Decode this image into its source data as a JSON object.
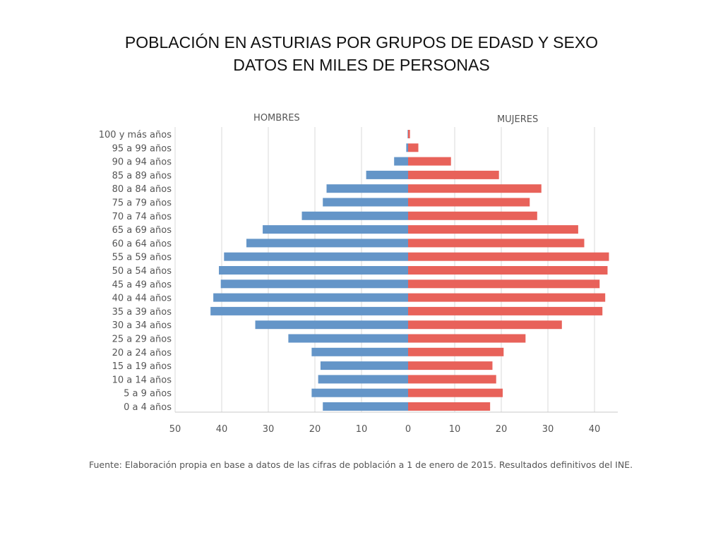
{
  "slide": {
    "title_line1": "POBLACIÓN EN ASTURIAS POR GRUPOS DE EDASD Y SEXO",
    "title_line2": "DATOS EN MILES DE PERSONAS"
  },
  "source": {
    "text": "Fuente: Elaboración propia en base a datos de las cifras de población a 1 de enero de 2015. Resultados definitivos del INE."
  },
  "colors": {
    "hombres": "#6495c8",
    "mujeres": "#e8625a",
    "grid": "#d9d9d9",
    "axis": "#c8c8c8",
    "label": "#555555"
  },
  "chart_data": {
    "type": "bar",
    "orientation": "horizontal-population-pyramid",
    "title": "POBLACIÓN EN ASTURIAS POR GRUPOS DE EDASD Y SEXO",
    "subtitle": "DATOS EN MILES DE PERSONAS",
    "series_labels": {
      "left": "HOMBRES",
      "right": "MUJERES"
    },
    "categories": [
      "100 y más años",
      "95 a 99 años",
      "90 a 94 años",
      "85 a 89 años",
      "80 a 84 años",
      "75 a 79 años",
      "70 a 74 años",
      "65 a 69 años",
      "60 a 64 años",
      "55 a 59 años",
      "50 a 54 años",
      "45 a 49 años",
      "40 a 44 años",
      "35 a 39 años",
      "30 a 34 años",
      "25 a 29 años",
      "20 a 24 años",
      "15 a 19 años",
      "10 a 14 años",
      "5 a 9 años",
      "0 a 4 años"
    ],
    "series": [
      {
        "name": "HOMBRES",
        "values": [
          0.1,
          0.4,
          3.0,
          9.0,
          17.5,
          18.3,
          22.8,
          31.2,
          34.7,
          39.5,
          40.6,
          40.2,
          41.8,
          42.4,
          32.8,
          25.7,
          20.7,
          18.8,
          19.3,
          20.7,
          18.3
        ]
      },
      {
        "name": "MUJERES",
        "values": [
          0.4,
          2.2,
          9.2,
          19.5,
          28.6,
          26.1,
          27.7,
          36.5,
          37.8,
          43.1,
          42.8,
          41.1,
          42.3,
          41.7,
          33.0,
          25.2,
          20.5,
          18.1,
          18.9,
          20.3,
          17.6
        ]
      }
    ],
    "xticks": [
      "50",
      "40",
      "30",
      "20",
      "10",
      "0",
      "10",
      "20",
      "30",
      "40"
    ],
    "xlim_left": [
      0,
      50
    ],
    "xlim_right": [
      0,
      45
    ],
    "grid": true
  }
}
